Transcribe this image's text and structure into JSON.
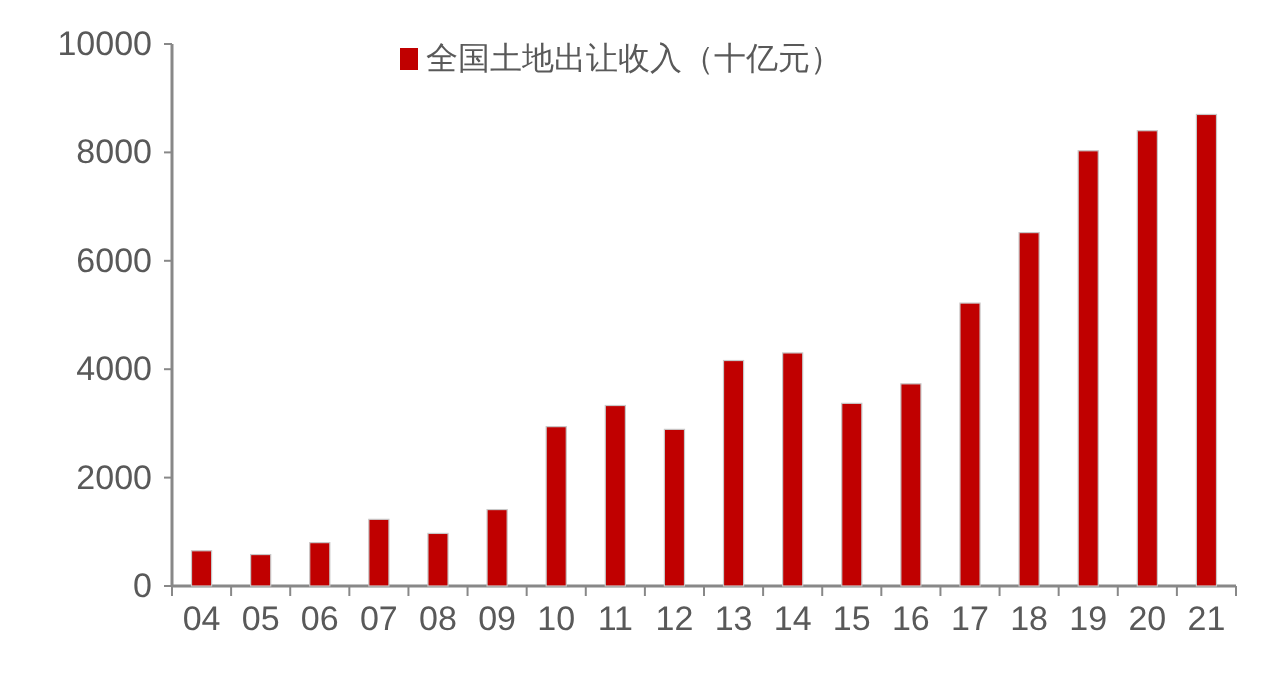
{
  "chart_data": {
    "type": "bar",
    "categories": [
      "04",
      "05",
      "06",
      "07",
      "08",
      "09",
      "10",
      "11",
      "12",
      "13",
      "14",
      "15",
      "16",
      "17",
      "18",
      "19",
      "20",
      "21"
    ],
    "series": [
      {
        "name": "全国土地出让收入（十亿元）",
        "color": "#c00000",
        "values": [
          650,
          580,
          800,
          1230,
          970,
          1410,
          2940,
          3330,
          2890,
          4160,
          4300,
          3370,
          3730,
          5220,
          6520,
          8030,
          8400,
          8700
        ]
      }
    ],
    "ylim": [
      0,
      10000
    ],
    "yticks": [
      0,
      2000,
      4000,
      6000,
      8000,
      10000
    ],
    "grid": false,
    "legend": "top"
  }
}
